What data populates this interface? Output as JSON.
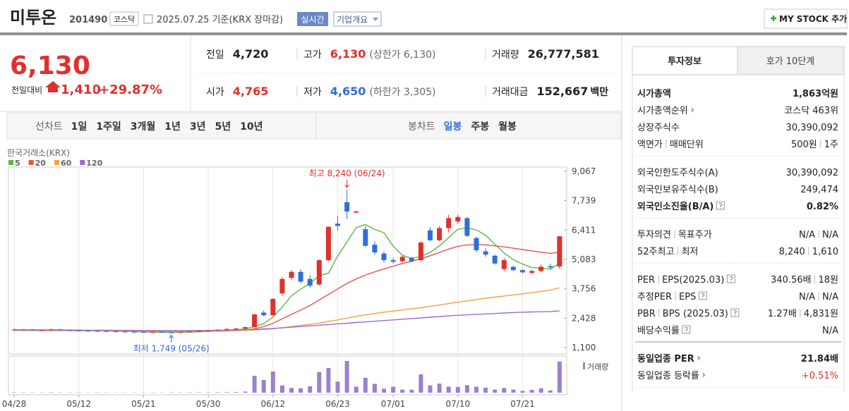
{
  "header": {
    "name": "미투온",
    "code": "201490",
    "market": "코스닥",
    "date": "2025.07.25 기준(KRX 장마감)",
    "realtime": "실시간",
    "company_info": "기업개요",
    "my_stock_button": "MY STOCK 추가"
  },
  "quote": {
    "price": "6,130",
    "change_label": "전일대비",
    "change": "1,410",
    "change_rate": "+29.87%",
    "items": [
      {
        "label": "전일",
        "value": "4,720"
      },
      {
        "label": "고가",
        "value": "6,130",
        "note": "(상한가 6,130)"
      },
      {
        "label": "거래량",
        "value": "26,777,581"
      },
      {
        "label": "시가",
        "value": "4,765"
      },
      {
        "label": "저가",
        "value": "4,650",
        "note": "(하한가 3,305)"
      },
      {
        "label": "거래대금",
        "value": "152,667",
        "unit": "백만"
      }
    ]
  },
  "chart_tabs": {
    "line": {
      "label": "선차트",
      "periods": [
        "1일",
        "1주일",
        "3개월",
        "1년",
        "3년",
        "5년",
        "10년"
      ]
    },
    "candle": {
      "label": "봉차트",
      "periods": [
        "일봉",
        "주봉",
        "월봉"
      ]
    }
  },
  "info_panel": {
    "tabs": [
      "투자정보",
      "호가 10단계"
    ],
    "groups": [
      [
        {
          "label": "시가총액",
          "value": "1,863억원"
        },
        {
          "label": "시가총액순위",
          "value": "코스닥 463위"
        },
        {
          "label": "상장주식수",
          "value": "30,390,092"
        },
        {
          "label": "액면가",
          "label2": "매매단위",
          "value": "500원",
          "value2": "1주"
        }
      ],
      [
        {
          "label": "외국인한도주식수(A)",
          "value": "30,390,092"
        },
        {
          "label": "외국인보유주식수(B)",
          "value": "249,474"
        },
        {
          "label": "외국인소진율(B/A)",
          "value": "0.82%"
        }
      ],
      [
        {
          "label": "투자의견",
          "label2": "목표주가",
          "value": "N/A",
          "value2": "N/A"
        },
        {
          "label": "52주최고",
          "label2": "최저",
          "value": "8,240",
          "value2": "1,610"
        }
      ],
      [
        {
          "label": "PER",
          "label2": "EPS(2025.03)",
          "value": "340.56배",
          "value2": "18원"
        },
        {
          "label": "추정PER",
          "label2": "EPS",
          "value": "N/A",
          "value2": "N/A"
        },
        {
          "label": "PBR",
          "label2": "BPS (2025.03)",
          "value": "1.27배",
          "value2": "4,831원"
        },
        {
          "label": "배당수익률",
          "value": "N/A"
        }
      ],
      [
        {
          "label": "동일업종 PER",
          "value": "21.84배"
        },
        {
          "label": "동일업종 등락률",
          "value": "+0.51%"
        }
      ]
    ]
  },
  "chart_data": {
    "type": "candlestick",
    "source": "한국거래소(KRX)",
    "up_color": "#e0302c",
    "down_color": "#2f6fd8",
    "categories": [
      "04/28",
      null,
      null,
      null,
      null,
      null,
      null,
      "05/12",
      null,
      null,
      null,
      null,
      null,
      null,
      "05/21",
      null,
      null,
      null,
      null,
      null,
      null,
      "05/30",
      null,
      null,
      null,
      null,
      null,
      null,
      "06/12",
      null,
      null,
      null,
      null,
      null,
      null,
      "06/23",
      null,
      null,
      null,
      null,
      null,
      "07/01",
      null,
      null,
      null,
      null,
      null,
      null,
      "07/10",
      null,
      null,
      null,
      null,
      null,
      null,
      "07/21",
      null,
      null,
      null,
      null
    ],
    "open": [
      1900,
      1910,
      1900,
      1880,
      1890,
      1920,
      1890,
      1870,
      1860,
      1850,
      1840,
      1830,
      1820,
      1810,
      1800,
      1790,
      1800,
      1780,
      1770,
      1800,
      1830,
      1860,
      1880,
      1900,
      1940,
      1960,
      2020,
      2680,
      2560,
      3550,
      4250,
      4520,
      4200,
      3950,
      5050,
      6700,
      7670,
      7200,
      6450,
      5750,
      5350,
      5050,
      5000,
      5150,
      5050,
      6400,
      5950,
      6500,
      6800,
      6950,
      6050,
      5450,
      5250,
      4650,
      4750,
      4600,
      4480,
      4560,
      4780,
      4765
    ],
    "high": [
      1960,
      1940,
      1930,
      1920,
      1950,
      1940,
      1910,
      1900,
      1890,
      1880,
      1870,
      1860,
      1850,
      1840,
      1830,
      1820,
      1830,
      1800,
      1820,
      1850,
      1880,
      1900,
      1930,
      1960,
      1990,
      2050,
      2620,
      2780,
      3330,
      4290,
      4600,
      4650,
      4380,
      5080,
      6560,
      7050,
      8240,
      7300,
      6600,
      5900,
      5450,
      5150,
      5250,
      5200,
      5900,
      6550,
      6600,
      7100,
      7100,
      7000,
      6100,
      5600,
      5300,
      5150,
      4800,
      4650,
      4620,
      4850,
      4900,
      6130
    ],
    "low": [
      1870,
      1880,
      1860,
      1850,
      1860,
      1880,
      1850,
      1830,
      1820,
      1810,
      1800,
      1790,
      1780,
      1770,
      1770,
      1760,
      1760,
      1749,
      1760,
      1780,
      1810,
      1840,
      1860,
      1880,
      1910,
      1940,
      2000,
      2530,
      2540,
      3450,
      4150,
      4000,
      3800,
      3900,
      5000,
      6400,
      6900,
      7180,
      5650,
      5300,
      4950,
      4900,
      4950,
      4950,
      5000,
      5900,
      5900,
      6300,
      6700,
      6100,
      5400,
      5200,
      4850,
      4550,
      4550,
      4450,
      4400,
      4500,
      4650,
      4650
    ],
    "close": [
      1910,
      1900,
      1880,
      1890,
      1920,
      1890,
      1870,
      1860,
      1850,
      1840,
      1830,
      1820,
      1810,
      1800,
      1790,
      1800,
      1780,
      1770,
      1800,
      1830,
      1860,
      1880,
      1900,
      1940,
      1960,
      2020,
      2600,
      2560,
      3300,
      4200,
      4520,
      4080,
      3900,
      5050,
      6560,
      6600,
      7250,
      7250,
      5700,
      5400,
      5050,
      4980,
      5200,
      5000,
      5850,
      5950,
      6500,
      6950,
      7000,
      6150,
      5500,
      5300,
      4900,
      5050,
      4600,
      4500,
      4560,
      4750,
      4720,
      6130
    ],
    "series": [
      {
        "name": "5",
        "color": "#5cb846",
        "values": [
          1905,
          1902,
          1898,
          1895,
          1900,
          1898,
          1890,
          1880,
          1872,
          1862,
          1850,
          1840,
          1830,
          1820,
          1810,
          1802,
          1796,
          1788,
          1788,
          1796,
          1812,
          1828,
          1854,
          1884,
          1910,
          1936,
          2060,
          2180,
          2480,
          2930,
          3440,
          3740,
          4000,
          4350,
          4460,
          5240,
          5870,
          6520,
          6660,
          6440,
          6290,
          5680,
          5270,
          5130,
          5220,
          5400,
          5700,
          6070,
          6450,
          6510,
          6420,
          6180,
          5770,
          5370,
          5070,
          4870,
          4720,
          4690,
          4640,
          4930
        ]
      },
      {
        "name": "20",
        "color": "#e8534d",
        "values": [
          1880,
          1878,
          1876,
          1874,
          1872,
          1870,
          1868,
          1866,
          1864,
          1860,
          1856,
          1852,
          1848,
          1844,
          1840,
          1836,
          1832,
          1830,
          1830,
          1830,
          1832,
          1836,
          1842,
          1850,
          1862,
          1880,
          1950,
          2050,
          2200,
          2400,
          2600,
          2800,
          3000,
          3250,
          3500,
          3750,
          4000,
          4200,
          4380,
          4520,
          4650,
          4780,
          4900,
          5000,
          5120,
          5250,
          5400,
          5550,
          5680,
          5740,
          5760,
          5740,
          5700,
          5650,
          5590,
          5530,
          5470,
          5410,
          5360,
          5400
        ]
      },
      {
        "name": "60",
        "color": "#f5a042",
        "values": [
          1870,
          1870,
          1868,
          1866,
          1865,
          1864,
          1862,
          1860,
          1858,
          1856,
          1854,
          1852,
          1850,
          1848,
          1846,
          1845,
          1844,
          1843,
          1843,
          1844,
          1846,
          1848,
          1852,
          1858,
          1866,
          1880,
          1900,
          1920,
          1950,
          2000,
          2050,
          2100,
          2150,
          2210,
          2280,
          2350,
          2430,
          2510,
          2580,
          2640,
          2700,
          2750,
          2800,
          2850,
          2900,
          2960,
          3020,
          3090,
          3150,
          3210,
          3270,
          3330,
          3380,
          3430,
          3480,
          3530,
          3580,
          3640,
          3700,
          3800
        ]
      },
      {
        "name": "120",
        "color": "#9b6ad0",
        "values": [
          1900,
          1898,
          1896,
          1894,
          1892,
          1890,
          1888,
          1886,
          1884,
          1882,
          1880,
          1878,
          1876,
          1874,
          1872,
          1870,
          1868,
          1866,
          1866,
          1868,
          1870,
          1874,
          1880,
          1888,
          1896,
          1905,
          1920,
          1940,
          1960,
          1990,
          2020,
          2050,
          2080,
          2110,
          2140,
          2170,
          2200,
          2230,
          2260,
          2290,
          2320,
          2350,
          2380,
          2410,
          2440,
          2470,
          2500,
          2530,
          2560,
          2580,
          2600,
          2620,
          2640,
          2660,
          2680,
          2700,
          2710,
          2720,
          2730,
          2760
        ]
      }
    ],
    "volume": {
      "name": "거래량",
      "color": "#9d7fcf",
      "values": [
        300000,
        250000,
        200000,
        220000,
        280000,
        210000,
        180000,
        190000,
        170000,
        200000,
        160000,
        150000,
        170000,
        180000,
        150000,
        160000,
        170000,
        260000,
        220000,
        240000,
        300000,
        280000,
        350000,
        420000,
        500000,
        900000,
        14500000,
        11000000,
        18200000,
        6200000,
        4100000,
        3800000,
        5600000,
        17800000,
        21300000,
        9500000,
        27300000,
        5200000,
        12800000,
        7600000,
        3400000,
        5100000,
        2600000,
        2500000,
        15800000,
        6300000,
        7800000,
        5200000,
        5000000,
        6500000,
        5100000,
        4300000,
        2600000,
        4000000,
        2600000,
        1500000,
        2400000,
        3800000,
        1900000,
        26777581
      ]
    },
    "ylim": [
      1100,
      9067
    ],
    "yticks": [
      {
        "value": 1100,
        "label": "1,100"
      },
      {
        "value": 2428,
        "label": "2,428"
      },
      {
        "value": 3756,
        "label": "3,756"
      },
      {
        "value": 5083,
        "label": "5,083"
      },
      {
        "value": 6411,
        "label": "6,411"
      },
      {
        "value": 7739,
        "label": "7,739"
      },
      {
        "value": 9067,
        "label": "9,067"
      }
    ],
    "annotations": [
      {
        "text": "최고 8,240 (06/24)"
      },
      {
        "text": "최저 1,749 (05/26)"
      }
    ]
  }
}
